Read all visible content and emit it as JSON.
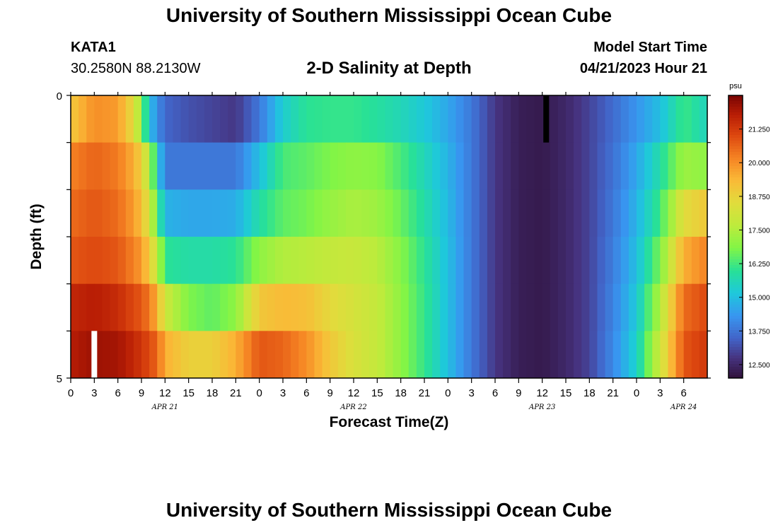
{
  "header": {
    "title": "University of Southern Mississippi Ocean Cube",
    "station": "KATA1",
    "coordinates": "30.2580N  88.2130W",
    "subtitle": "2-D Salinity at Depth",
    "model_label": "Model Start Time",
    "model_time": "04/21/2023 Hour 21"
  },
  "footer": {
    "title": "University of Southern Mississippi Ocean Cube"
  },
  "chart_data": {
    "type": "heatmap",
    "xlabel": "Forecast Time(Z)",
    "ylabel": "Depth (ft)",
    "x_range_hours": [
      0,
      81
    ],
    "x_tick_labels": [
      "0",
      "3",
      "6",
      "9",
      "12",
      "15",
      "18",
      "21",
      "0",
      "3",
      "6",
      "9",
      "12",
      "15",
      "18",
      "21",
      "0",
      "3",
      "6",
      "9",
      "12",
      "15",
      "18",
      "21",
      "0",
      "3",
      "6"
    ],
    "date_labels": [
      {
        "label": "APR 21",
        "hour": 12
      },
      {
        "label": "APR 22",
        "hour": 36
      },
      {
        "label": "APR 23",
        "hour": 60
      },
      {
        "label": "APR 24",
        "hour": 78
      }
    ],
    "y_range": [
      0,
      5
    ],
    "y_tick_labels": [
      "0",
      "5"
    ],
    "colorbar": {
      "unit": "psu",
      "min": 12.0,
      "max": 22.5,
      "tick_labels": [
        "21.250",
        "20.000",
        "18.750",
        "17.500",
        "16.250",
        "15.000",
        "13.750",
        "12.500"
      ],
      "tick_values": [
        21.25,
        20.0,
        18.75,
        17.5,
        16.25,
        15.0,
        13.75,
        12.5
      ]
    },
    "rows_by_depth": [
      {
        "depth_layer": 1,
        "hours": [
          0,
          3,
          6,
          8,
          9,
          10,
          12,
          15,
          18,
          21,
          24,
          27,
          30,
          33,
          36,
          39,
          42,
          45,
          48,
          51,
          54,
          57,
          60,
          63,
          66,
          69,
          72,
          75,
          78,
          81
        ],
        "salinity": [
          19.0,
          20.0,
          19.8,
          18.5,
          17.0,
          15.0,
          13.5,
          13.2,
          13.0,
          12.8,
          13.8,
          15.3,
          16.0,
          16.1,
          16.1,
          15.9,
          15.6,
          15.2,
          14.6,
          13.8,
          12.8,
          12.3,
          12.2,
          12.5,
          13.0,
          13.6,
          14.3,
          15.0,
          16.2,
          15.5
        ]
      },
      {
        "depth_layer": 2,
        "hours": [
          0,
          3,
          6,
          8,
          9,
          10,
          11,
          12,
          15,
          18,
          21,
          24,
          27,
          30,
          33,
          36,
          39,
          42,
          45,
          48,
          51,
          54,
          57,
          60,
          63,
          66,
          69,
          72,
          75,
          78,
          81
        ],
        "salinity": [
          20.2,
          20.6,
          20.3,
          19.5,
          18.8,
          17.5,
          15.5,
          13.8,
          13.8,
          13.8,
          13.8,
          15.0,
          16.3,
          16.5,
          16.8,
          17.0,
          16.9,
          16.3,
          15.6,
          14.8,
          13.8,
          12.8,
          12.3,
          12.2,
          12.5,
          13.0,
          13.7,
          14.6,
          15.8,
          17.2,
          17.0
        ]
      },
      {
        "depth_layer": 3,
        "hours": [
          0,
          3,
          6,
          8,
          9,
          10,
          11,
          12,
          15,
          18,
          21,
          24,
          27,
          30,
          33,
          36,
          39,
          42,
          45,
          48,
          51,
          54,
          57,
          60,
          63,
          66,
          69,
          72,
          75,
          78,
          81
        ],
        "salinity": [
          20.5,
          20.8,
          20.5,
          19.8,
          19.2,
          18.2,
          16.5,
          14.8,
          14.6,
          14.6,
          14.7,
          15.8,
          16.5,
          16.7,
          17.1,
          17.4,
          17.2,
          16.6,
          15.8,
          14.9,
          13.8,
          12.8,
          12.3,
          12.2,
          12.5,
          13.0,
          13.8,
          14.8,
          16.2,
          18.5,
          19.0
        ]
      },
      {
        "depth_layer": 4,
        "hours": [
          0,
          3,
          6,
          8,
          9,
          10,
          11,
          12,
          15,
          18,
          21,
          24,
          27,
          30,
          33,
          36,
          39,
          42,
          45,
          48,
          51,
          54,
          57,
          60,
          63,
          66,
          69,
          72,
          75,
          78,
          81
        ],
        "salinity": [
          20.8,
          21.0,
          20.8,
          20.2,
          19.8,
          19.0,
          17.8,
          16.0,
          15.8,
          15.8,
          16.0,
          17.0,
          17.5,
          17.6,
          17.8,
          17.9,
          17.6,
          16.9,
          16.0,
          15.0,
          13.8,
          12.8,
          12.3,
          12.2,
          12.5,
          13.0,
          13.9,
          15.0,
          16.8,
          19.5,
          20.2
        ]
      },
      {
        "depth_layer": 5,
        "hours": [
          0,
          3,
          6,
          8,
          9,
          10,
          11,
          12,
          15,
          18,
          21,
          24,
          27,
          30,
          33,
          36,
          39,
          42,
          45,
          48,
          51,
          54,
          57,
          60,
          63,
          66,
          69,
          72,
          75,
          78,
          81
        ],
        "salinity": [
          21.6,
          21.8,
          21.5,
          21.0,
          20.8,
          20.3,
          19.5,
          18.0,
          16.8,
          16.5,
          17.0,
          19.0,
          19.3,
          19.2,
          18.6,
          18.2,
          17.8,
          17.0,
          16.1,
          15.0,
          13.8,
          12.8,
          12.3,
          12.2,
          12.5,
          13.0,
          14.0,
          15.2,
          17.5,
          20.5,
          21.0
        ]
      },
      {
        "depth_layer": 6,
        "hours": [
          0,
          3,
          6,
          8,
          9,
          10,
          11,
          12,
          15,
          18,
          21,
          24,
          27,
          30,
          33,
          36,
          39,
          42,
          45,
          48,
          51,
          54,
          57,
          60,
          63,
          66,
          69,
          72,
          75,
          78,
          81
        ],
        "salinity": [
          21.8,
          22.1,
          22.0,
          21.6,
          21.3,
          21.0,
          20.6,
          19.5,
          18.8,
          18.8,
          19.5,
          20.8,
          20.6,
          20.0,
          19.0,
          18.3,
          17.8,
          17.0,
          16.1,
          15.0,
          13.8,
          12.8,
          12.3,
          12.2,
          12.5,
          13.0,
          14.1,
          15.4,
          18.0,
          20.8,
          21.3
        ]
      }
    ],
    "markers": [
      {
        "kind": "white-bar",
        "hour": 3,
        "depth_layer": 6
      },
      {
        "kind": "black-bar",
        "hour": 60.5,
        "depth_layer": 1
      }
    ]
  }
}
